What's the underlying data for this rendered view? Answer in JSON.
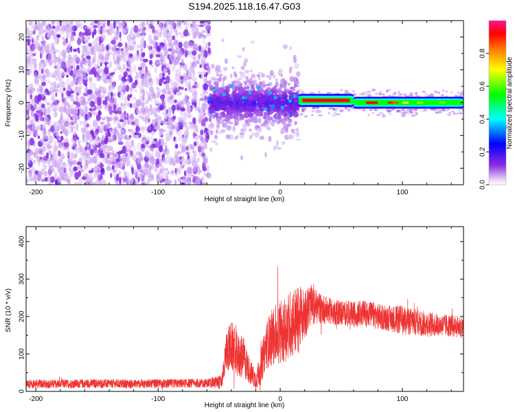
{
  "title": "S194.2025.118.16.47.G03",
  "colors": {
    "snr_line": "#ee3333",
    "spectrogram_low": "#8a2be2",
    "axis": "#000000"
  },
  "chart_data": [
    {
      "type": "heatmap",
      "xlabel": "Height of straight line (km)",
      "ylabel": "Frequency (Hz)",
      "xlim": [
        -208,
        150
      ],
      "ylim": [
        -25,
        25
      ],
      "xticks": [
        -200,
        -100,
        0,
        100
      ],
      "xtick_labels": [
        "-200",
        "-100",
        "0",
        "100"
      ],
      "yticks": [
        -20,
        -10,
        0,
        10,
        20
      ],
      "ytick_labels": [
        "-20",
        "-10",
        "0",
        "10",
        "20"
      ],
      "colorbar": {
        "label": "Normalized spectral amplitude",
        "range": [
          0.0,
          1.0
        ],
        "ticks": [
          0.0,
          0.2,
          0.4,
          0.6,
          0.8
        ],
        "tick_labels": [
          "0.0",
          "0.2",
          "0.4",
          "0.6",
          "0.8"
        ],
        "colormap": "rainbow (violet→blue→cyan→green→yellow→red→magenta)"
      },
      "regions": [
        {
          "x_range": [
            -208,
            -58
          ],
          "f_range": [
            -25,
            25
          ],
          "amplitude": 0.03,
          "pattern": "broadband noise"
        },
        {
          "x_range": [
            -58,
            15
          ],
          "f_range": [
            -10,
            10
          ],
          "amplitude": 0.15,
          "pattern": "scattered bright blobs near 0 Hz"
        },
        {
          "x_range": [
            15,
            60
          ],
          "f_center": 0.7,
          "amplitude": 0.98,
          "pattern": "narrow tone"
        },
        {
          "x_range": [
            60,
            150
          ],
          "f_center": 0.0,
          "amplitude": 0.6,
          "pattern": "narrow tone, fading"
        }
      ]
    },
    {
      "type": "line",
      "xlabel": "Height of straight line (km)",
      "ylabel": "SNR (10 * v/v)",
      "xlim": [
        -208,
        150
      ],
      "ylim": [
        0,
        440
      ],
      "xticks": [
        -200,
        -100,
        0,
        100
      ],
      "xtick_labels": [
        "-200",
        "-100",
        "0",
        "100"
      ],
      "yticks": [
        0,
        100,
        200,
        300,
        400
      ],
      "ytick_labels": [
        "0",
        "100",
        "200",
        "300",
        "400"
      ],
      "series": [
        {
          "x": [
            -208,
            -180,
            -150,
            -120,
            -90,
            -60,
            -48,
            -44,
            -40,
            -35,
            -30,
            -25,
            -20,
            -16,
            -12,
            -8,
            -4,
            0,
            5,
            10,
            15,
            20,
            25,
            30,
            40,
            50,
            60,
            70,
            80,
            90,
            100,
            110,
            120,
            130,
            140,
            150
          ],
          "y": [
            20,
            20,
            21,
            20,
            21,
            22,
            25,
            110,
            120,
            95,
            90,
            55,
            30,
            60,
            120,
            140,
            150,
            160,
            170,
            185,
            190,
            210,
            230,
            225,
            215,
            210,
            205,
            210,
            200,
            195,
            190,
            185,
            180,
            178,
            175,
            172
          ],
          "spread": [
            12,
            12,
            12,
            12,
            12,
            12,
            20,
            55,
            70,
            60,
            55,
            35,
            25,
            45,
            60,
            75,
            80,
            85,
            90,
            95,
            90,
            70,
            55,
            45,
            35,
            35,
            35,
            35,
            35,
            35,
            40,
            35,
            35,
            30,
            30,
            30
          ]
        }
      ]
    }
  ]
}
